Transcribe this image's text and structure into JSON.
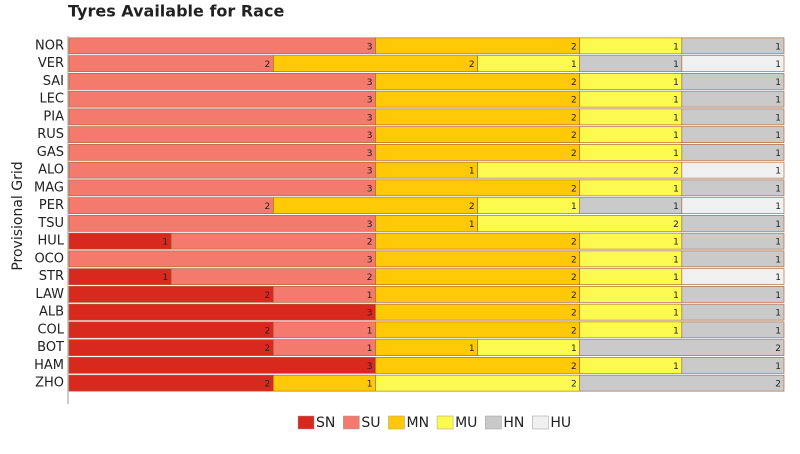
{
  "chart_data": {
    "type": "stacked-barh",
    "title": "Tyres Available for Race",
    "y_label": "Provisional Grid",
    "categories": [
      "NOR",
      "VER",
      "SAI",
      "LEC",
      "PIA",
      "RUS",
      "GAS",
      "ALO",
      "MAG",
      "PER",
      "TSU",
      "HUL",
      "OCO",
      "STR",
      "LAW",
      "ALB",
      "COL",
      "BOT",
      "HAM",
      "ZHO"
    ],
    "xlim": [
      0,
      7
    ],
    "legend": "bottom",
    "series": [
      {
        "name": "SN",
        "color": "#d9291f",
        "values": [
          0,
          0,
          0,
          0,
          0,
          0,
          0,
          0,
          0,
          0,
          0,
          1,
          0,
          1,
          2,
          3,
          2,
          2,
          3,
          2
        ]
      },
      {
        "name": "SU",
        "color": "#f47a6d",
        "values": [
          3,
          2,
          3,
          3,
          3,
          3,
          3,
          3,
          3,
          2,
          3,
          2,
          3,
          2,
          1,
          0,
          1,
          1,
          0,
          0
        ]
      },
      {
        "name": "MN",
        "color": "#ffc907",
        "values": [
          2,
          2,
          2,
          2,
          2,
          2,
          2,
          1,
          2,
          2,
          1,
          2,
          2,
          2,
          2,
          2,
          2,
          1,
          2,
          1
        ]
      },
      {
        "name": "MU",
        "color": "#fdfa4f",
        "values": [
          1,
          1,
          1,
          1,
          1,
          1,
          1,
          2,
          1,
          1,
          2,
          1,
          1,
          1,
          1,
          1,
          1,
          1,
          1,
          2
        ]
      },
      {
        "name": "HN",
        "color": "#cacaca",
        "values": [
          1,
          1,
          1,
          1,
          1,
          1,
          1,
          0,
          1,
          1,
          1,
          1,
          1,
          0,
          1,
          1,
          1,
          2,
          1,
          2
        ]
      },
      {
        "name": "HU",
        "color": "#f0f0f0",
        "values": [
          0,
          1,
          0,
          0,
          0,
          0,
          0,
          1,
          0,
          1,
          0,
          0,
          0,
          1,
          0,
          0,
          0,
          0,
          0,
          0
        ]
      }
    ]
  }
}
